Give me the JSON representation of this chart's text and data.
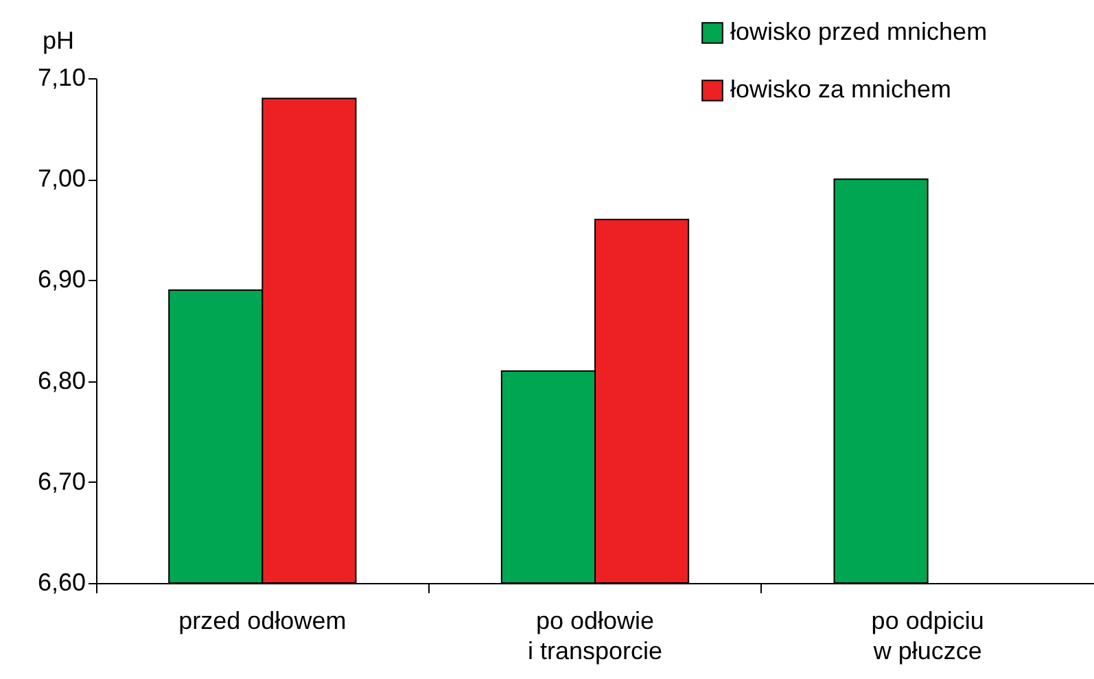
{
  "chart_data": {
    "type": "bar",
    "ylabel": "pH",
    "categories": [
      "przed odłowem",
      "po odłowie\ni transporcie",
      "po odpiciu\nw płuczce"
    ],
    "series": [
      {
        "name": "łowisko przed mnichem",
        "color": "#00a651",
        "values": [
          6.89,
          6.81,
          7.0
        ]
      },
      {
        "name": "łowisko za mnichem",
        "color": "#ed2024",
        "values": [
          7.08,
          6.96,
          null
        ]
      }
    ],
    "ylim": [
      6.6,
      7.1
    ],
    "yticks": [
      {
        "value": 6.6,
        "label": "6,60"
      },
      {
        "value": 6.7,
        "label": "6,70"
      },
      {
        "value": 6.8,
        "label": "6,80"
      },
      {
        "value": 6.9,
        "label": "6,90"
      },
      {
        "value": 7.0,
        "label": "7,00"
      },
      {
        "value": 7.1,
        "label": "7,10"
      }
    ],
    "grid": false,
    "legend": "top right"
  }
}
